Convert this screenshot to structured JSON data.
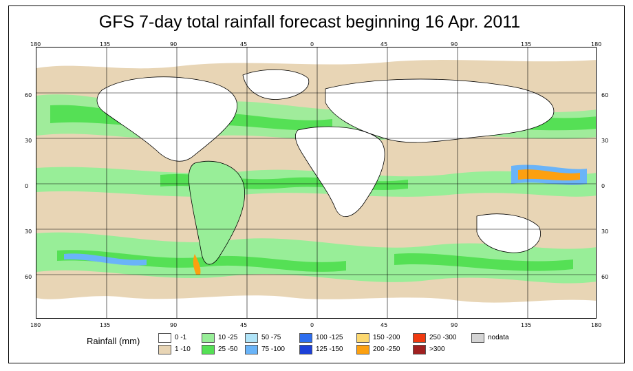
{
  "title": "GFS 7-day total rainfall forecast beginning 16 Apr. 2011",
  "top_ticks": [
    "180",
    "135",
    "90",
    "45",
    "0",
    "45",
    "90",
    "135",
    "180"
  ],
  "bottom_ticks": [
    "180",
    "135",
    "90",
    "45",
    "0",
    "45",
    "90",
    "135",
    "180"
  ],
  "left_ticks": [
    "60",
    "30",
    "0",
    "30",
    "60"
  ],
  "right_ticks": [
    "60",
    "30",
    "0",
    "30",
    "60"
  ],
  "legend": {
    "title": "Rainfall (mm)",
    "items": [
      {
        "label": "0 -1",
        "color": "#ffffff"
      },
      {
        "label": "1 -10",
        "color": "#e8d5b5"
      },
      {
        "label": "10 -25",
        "color": "#98ee98"
      },
      {
        "label": "25 -50",
        "color": "#55e055"
      },
      {
        "label": "50 -75",
        "color": "#b0e4f8"
      },
      {
        "label": "75 -100",
        "color": "#6ab4f8"
      },
      {
        "label": "100 -125",
        "color": "#2e6ef0"
      },
      {
        "label": "125 -150",
        "color": "#1c40d8"
      },
      {
        "label": "150 -200",
        "color": "#fcd870"
      },
      {
        "label": "200 -250",
        "color": "#fca010"
      },
      {
        "label": "250 -300",
        "color": "#f03a10"
      },
      {
        "label": ">300",
        "color": "#a02020"
      },
      {
        "label": "nodata",
        "color": "#d4d4d4"
      }
    ]
  },
  "colors": {
    "ocean_dry": "#e8d5b5",
    "light_rain": "#98ee98",
    "moderate_rain": "#55e055",
    "no_rain": "#ffffff",
    "heavy_blue": "#6ab4f8",
    "intense": "#fca010"
  }
}
